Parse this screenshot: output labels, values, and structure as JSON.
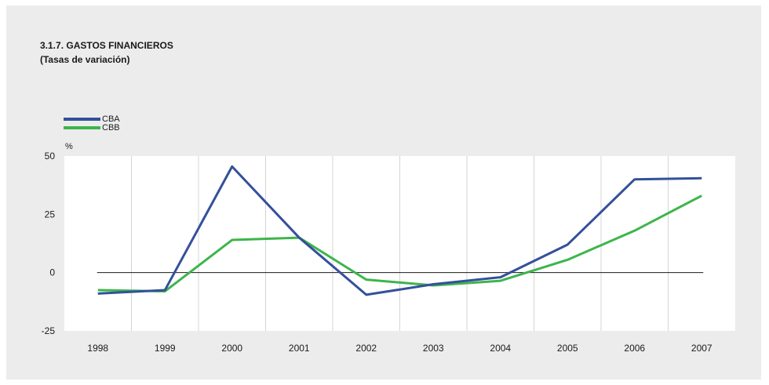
{
  "colors": {
    "panel_background": "#ececec",
    "plot_background": "#ffffff",
    "CBA": "#34509a",
    "CBB": "#3db54a"
  },
  "title": "3.1.7. GASTOS FINANCIEROS",
  "subtitle": "(Tasas de variación)",
  "chart_data": {
    "type": "line",
    "title": "3.1.7. GASTOS FINANCIEROS",
    "subtitle": "(Tasas de variación)",
    "ylabel": "%",
    "xlabel": "",
    "categories": [
      "1998",
      "1999",
      "2000",
      "2001",
      "2002",
      "2003",
      "2004",
      "2005",
      "2006",
      "2007"
    ],
    "yticks": [
      "50",
      "25",
      "0",
      "-25"
    ],
    "ylim": [
      -25,
      50
    ],
    "grid": "vertical",
    "legend_position": "top-left",
    "series": [
      {
        "name": "CBA",
        "values": [
          -9,
          -7.5,
          45.5,
          15,
          -9.5,
          -5,
          -2,
          12,
          40,
          40.5
        ]
      },
      {
        "name": "CBB",
        "values": [
          -7.5,
          -8,
          14,
          15,
          -3,
          -5.5,
          -3.5,
          5.5,
          18,
          33
        ]
      }
    ]
  }
}
